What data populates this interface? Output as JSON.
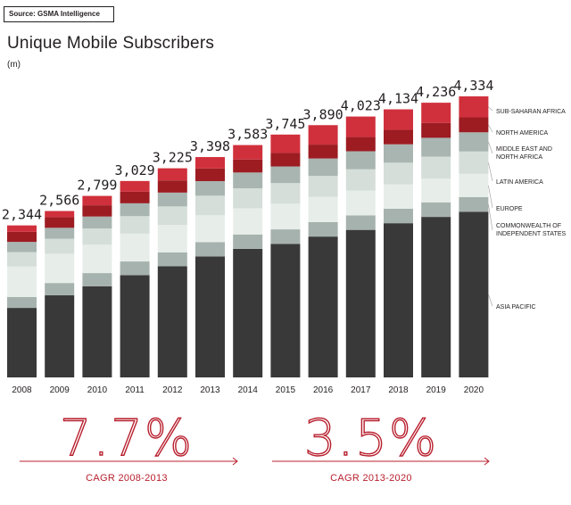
{
  "source": "Source: GSMA Intelligence",
  "title": "Unique Mobile Subscribers",
  "unit": "(m)",
  "colors": {
    "sub_saharan_africa": "#d0303c",
    "north_america": "#9c1c22",
    "middle_east_north_africa": "#a8b5b1",
    "latin_america": "#d5ded9",
    "europe": "#e7eee9",
    "cis": "#a6b2ad",
    "asia_pacific": "#3a393a",
    "accent": "#b8202e"
  },
  "chart_data": {
    "type": "bar",
    "stacked": true,
    "categories": [
      "2008",
      "2009",
      "2010",
      "2011",
      "2012",
      "2013",
      "2014",
      "2015",
      "2016",
      "2017",
      "2018",
      "2019",
      "2020"
    ],
    "totals": [
      2344,
      2566,
      2799,
      3029,
      3225,
      3398,
      3583,
      3745,
      3890,
      4023,
      4134,
      4236,
      4334
    ],
    "total_labels": [
      "2,344",
      "2,566",
      "2,799",
      "3,029",
      "3,225",
      "3,398",
      "3,583",
      "3,745",
      "3,890",
      "4,023",
      "4,134",
      "4,236",
      "4,334"
    ],
    "series": [
      {
        "name": "ASIA PACIFIC",
        "key": "asia_pacific",
        "values": [
          1072,
          1267,
          1406,
          1576,
          1713,
          1866,
          1983,
          2060,
          2172,
          2275,
          2378,
          2475,
          2555
        ]
      },
      {
        "name": "COMMONWEALTH OF INDEPENDENT STATES",
        "key": "cis",
        "values": [
          169,
          189,
          203,
          212,
          216,
          221,
          221,
          223,
          223,
          224,
          224,
          225,
          227
        ]
      },
      {
        "name": "EUROPE",
        "key": "europe",
        "values": [
          470,
          451,
          437,
          429,
          421,
          413,
          404,
          396,
          389,
          382,
          374,
          366,
          359
        ]
      },
      {
        "name": "LATIN AMERICA",
        "key": "latin_america",
        "values": [
          221,
          232,
          252,
          270,
          287,
          302,
          309,
          317,
          323,
          329,
          335,
          339,
          343
        ]
      },
      {
        "name": "MIDDLE EAST AND NORTH AFRICA",
        "key": "middle_east_north_africa",
        "values": [
          158,
          168,
          183,
          198,
          213,
          225,
          243,
          257,
          269,
          278,
          284,
          290,
          296
        ]
      },
      {
        "name": "NORTH AMERICA",
        "key": "north_america",
        "values": [
          155,
          164,
          173,
          181,
          188,
          195,
          201,
          208,
          214,
          219,
          224,
          228,
          231
        ]
      },
      {
        "name": "SUB-SAHARAN AFRICA",
        "key": "sub_saharan_africa",
        "values": [
          99,
          95,
          145,
          163,
          187,
          176,
          222,
          284,
          300,
          316,
          315,
          313,
          323
        ]
      }
    ],
    "legend_position": "right",
    "grid": false
  },
  "cagr": [
    {
      "value": "7.7%",
      "label": "CAGR 2008-2013"
    },
    {
      "value": "3.5%",
      "label": "CAGR 2013-2020"
    }
  ]
}
